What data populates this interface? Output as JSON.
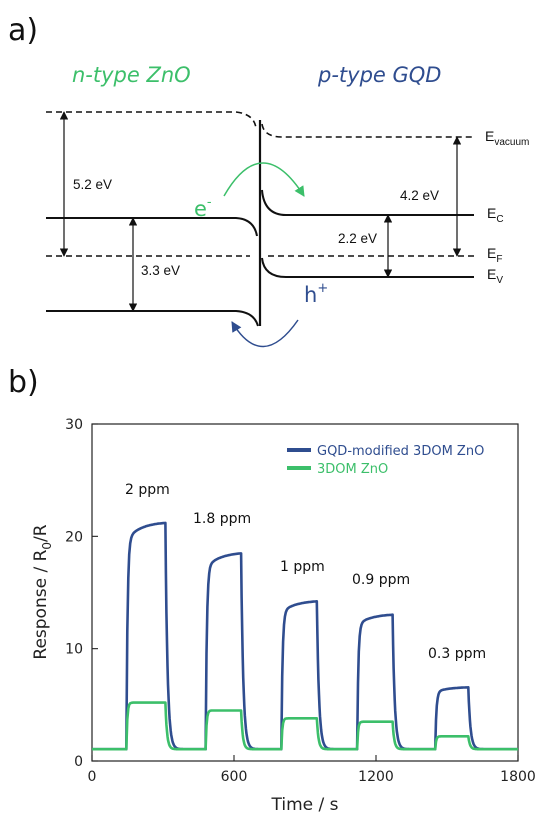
{
  "colors": {
    "zno": "#3cbf6a",
    "gqd": "#2f4d8f",
    "ink": "#111111"
  },
  "panel_a": {
    "label": "a)",
    "zno_label": "n-type ZnO",
    "gqd_label": "p-type GQD",
    "gap_52": "5.2 eV",
    "gap_33": "3.3 eV",
    "gap_42": "4.2 eV",
    "gap_22": "2.2 eV",
    "evac": {
      "main": "E",
      "sub": "vacuum"
    },
    "ec": {
      "main": "E",
      "sub": "C"
    },
    "ef": {
      "main": "E",
      "sub": "F"
    },
    "ev": {
      "main": "E",
      "sub": "V"
    },
    "electron": {
      "main": "e",
      "sup": "-"
    },
    "hole": {
      "main": "h",
      "sup": "+"
    }
  },
  "panel_b": {
    "label": "b)",
    "concentrations": [
      "2 ppm",
      "1.8 ppm",
      "1 ppm",
      "0.9 ppm",
      "0.3 ppm"
    ]
  },
  "chart_data": {
    "type": "line",
    "xlabel": "Time / s",
    "ylabel": {
      "main": "Response / R",
      "sub": "0",
      "tail": "/R"
    },
    "xlim": [
      0,
      1800
    ],
    "ylim": [
      0,
      30
    ],
    "xticks": [
      "0",
      "600",
      "1200",
      "1800"
    ],
    "yticks": [
      "0",
      "10",
      "20",
      "30"
    ],
    "legend_position": "top-right",
    "baseline": 1.05,
    "pulses": [
      {
        "on": 145,
        "off": 310,
        "gqd_peak": 21.3,
        "zno_peak": 5.2
      },
      {
        "on": 480,
        "off": 630,
        "gqd_peak": 18.6,
        "zno_peak": 4.5
      },
      {
        "on": 800,
        "off": 950,
        "gqd_peak": 14.3,
        "zno_peak": 3.8
      },
      {
        "on": 1120,
        "off": 1270,
        "gqd_peak": 13.1,
        "zno_peak": 3.5
      },
      {
        "on": 1450,
        "off": 1590,
        "gqd_peak": 6.6,
        "zno_peak": 2.2
      }
    ],
    "series": [
      {
        "name": "GQD-modified 3DOM ZnO",
        "key": "gqd",
        "color": "#2f4d8f"
      },
      {
        "name": "3DOM ZnO",
        "key": "zno",
        "color": "#3cbf6a"
      }
    ]
  }
}
